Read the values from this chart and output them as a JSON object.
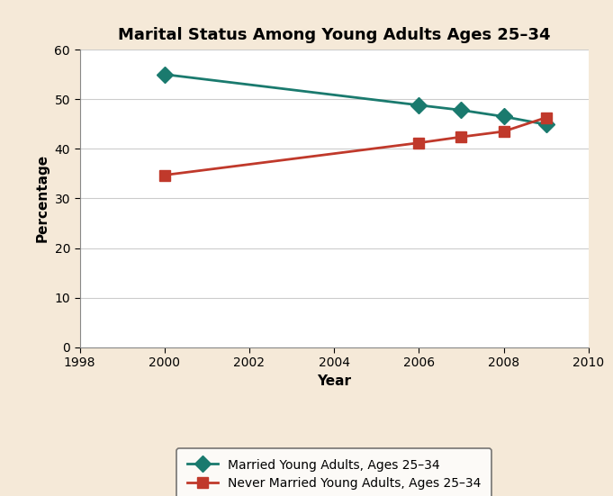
{
  "title": "Marital Status Among Young Adults Ages 25–34",
  "xlabel": "Year",
  "ylabel": "Percentage",
  "background_color": "#f5e9d8",
  "plot_background": "#ffffff",
  "xlim": [
    1998,
    2010
  ],
  "ylim": [
    0,
    60
  ],
  "xticks": [
    1998,
    2000,
    2002,
    2004,
    2006,
    2008,
    2010
  ],
  "yticks": [
    0,
    10,
    20,
    30,
    40,
    50,
    60
  ],
  "married": {
    "years": [
      2000,
      2006,
      2007,
      2008,
      2009
    ],
    "values": [
      55.0,
      48.8,
      47.8,
      46.5,
      44.9
    ],
    "color": "#1a7a6e",
    "marker": "D",
    "label": "Married Young Adults, Ages 25–34"
  },
  "never_married": {
    "years": [
      2000,
      2006,
      2007,
      2008,
      2009
    ],
    "values": [
      34.7,
      41.2,
      42.4,
      43.5,
      46.3
    ],
    "color": "#c0392b",
    "marker": "s",
    "label": "Never Married Young Adults, Ages 25–34"
  },
  "title_fontsize": 13,
  "axis_label_fontsize": 11,
  "tick_fontsize": 10,
  "legend_fontsize": 10
}
